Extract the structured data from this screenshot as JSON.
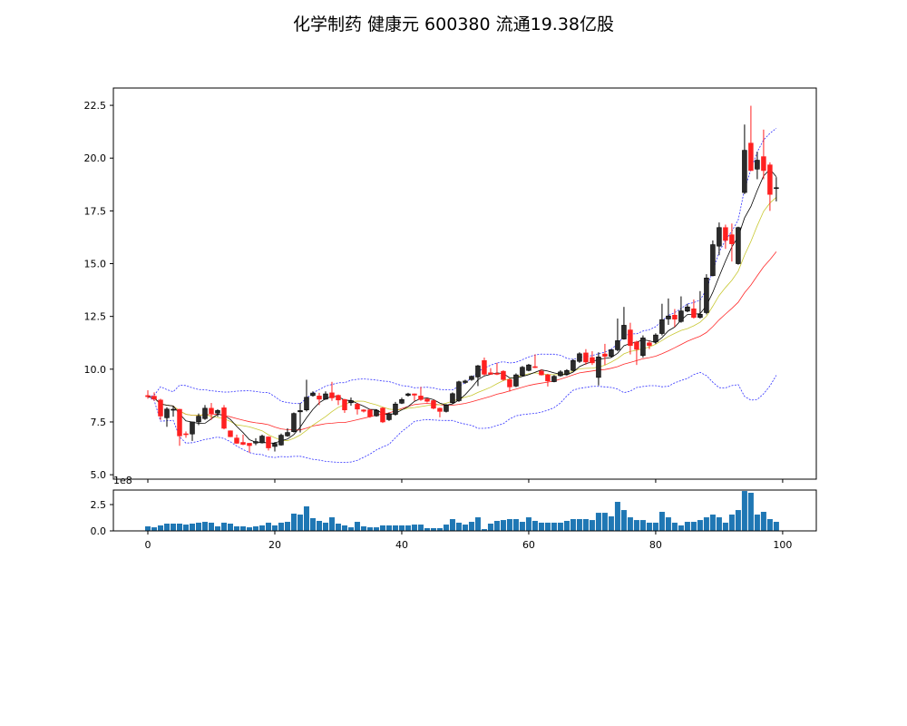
{
  "chart_data": {
    "type": "candlestick",
    "title": "化学制药 健康元 600380 流通19.38亿股",
    "colors": {
      "up": "#2b2b2b",
      "down": "#ff2020",
      "ma5": "#000000",
      "ma10": "#c8c832",
      "ma20": "#ff2a2a",
      "band": "#3030ff",
      "volume": "#1f77b4"
    },
    "price_axis": {
      "ylim": [
        4.79,
        23.32
      ],
      "ticks": [
        5.0,
        7.5,
        10.0,
        12.5,
        15.0,
        17.5,
        20.0,
        22.5
      ],
      "tick_labels": [
        "5.0",
        "7.5",
        "10.0",
        "12.5",
        "15.0",
        "17.5",
        "20.0",
        "22.5"
      ]
    },
    "x_axis": {
      "xlim": [
        -5.43,
        105.3
      ],
      "ticks": [
        0,
        20,
        40,
        60,
        80,
        100
      ],
      "tick_labels": [
        "0",
        "20",
        "40",
        "60",
        "80",
        "100"
      ]
    },
    "volume_axis": {
      "ylim": [
        0,
        3.88
      ],
      "ticks": [
        0,
        2.5
      ],
      "tick_labels": [
        "0.0",
        "2.5"
      ],
      "offset_label": "1e8"
    },
    "ohlc_fields": [
      "open",
      "high",
      "low",
      "close"
    ],
    "ohlc": [
      [
        8.75,
        9.0,
        8.6,
        8.7
      ],
      [
        8.72,
        8.9,
        8.5,
        8.58
      ],
      [
        8.54,
        8.6,
        7.6,
        7.78
      ],
      [
        7.7,
        8.2,
        7.27,
        8.11
      ],
      [
        8.08,
        8.25,
        7.75,
        8.1
      ],
      [
        8.1,
        8.12,
        6.37,
        6.84
      ],
      [
        6.94,
        7.05,
        6.75,
        6.93
      ],
      [
        6.93,
        7.5,
        6.6,
        7.5
      ],
      [
        7.5,
        7.9,
        7.35,
        7.77
      ],
      [
        7.66,
        8.3,
        7.6,
        8.15
      ],
      [
        8.15,
        8.4,
        7.6,
        7.9
      ],
      [
        7.92,
        8.1,
        7.75,
        8.04
      ],
      [
        8.17,
        8.3,
        7.15,
        7.2
      ],
      [
        7.08,
        7.1,
        6.78,
        6.8
      ],
      [
        6.74,
        6.9,
        6.47,
        6.49
      ],
      [
        6.53,
        6.9,
        6.4,
        6.44
      ],
      [
        6.49,
        6.5,
        6.05,
        6.38
      ],
      [
        6.5,
        6.73,
        6.4,
        6.57
      ],
      [
        6.51,
        6.9,
        6.48,
        6.83
      ],
      [
        6.79,
        6.82,
        6.15,
        6.27
      ],
      [
        6.34,
        6.55,
        6.1,
        6.48
      ],
      [
        6.41,
        6.95,
        6.38,
        6.87
      ],
      [
        6.84,
        7.2,
        6.8,
        7.0
      ],
      [
        7.04,
        7.95,
        7.0,
        7.9
      ],
      [
        7.98,
        8.4,
        7.0,
        8.04
      ],
      [
        8.07,
        9.5,
        8.0,
        8.67
      ],
      [
        8.75,
        8.95,
        8.7,
        8.87
      ],
      [
        8.73,
        8.88,
        8.3,
        8.58
      ],
      [
        8.58,
        8.95,
        8.55,
        8.83
      ],
      [
        8.88,
        9.4,
        8.5,
        8.64
      ],
      [
        8.76,
        8.8,
        8.3,
        8.54
      ],
      [
        8.56,
        8.6,
        7.93,
        8.07
      ],
      [
        8.41,
        8.66,
        8.27,
        8.51
      ],
      [
        8.34,
        8.4,
        7.85,
        8.11
      ],
      [
        8.07,
        8.1,
        7.95,
        8.01
      ],
      [
        8.07,
        8.1,
        7.7,
        7.76
      ],
      [
        7.79,
        8.1,
        7.75,
        8.05
      ],
      [
        8.16,
        8.2,
        7.45,
        7.5
      ],
      [
        7.61,
        7.95,
        7.55,
        7.89
      ],
      [
        7.86,
        8.45,
        7.8,
        8.35
      ],
      [
        8.39,
        8.65,
        8.35,
        8.56
      ],
      [
        8.76,
        8.88,
        8.7,
        8.83
      ],
      [
        8.83,
        8.85,
        8.5,
        8.77
      ],
      [
        8.73,
        9.16,
        8.5,
        8.56
      ],
      [
        8.59,
        8.62,
        8.42,
        8.48
      ],
      [
        8.51,
        8.55,
        8.1,
        8.15
      ],
      [
        8.15,
        8.18,
        7.72,
        8.0
      ],
      [
        8.0,
        8.35,
        7.95,
        8.3
      ],
      [
        8.41,
        8.9,
        8.35,
        8.84
      ],
      [
        8.51,
        9.45,
        8.45,
        9.4
      ],
      [
        9.37,
        9.5,
        9.3,
        9.44
      ],
      [
        9.51,
        9.7,
        9.45,
        9.66
      ],
      [
        9.63,
        10.2,
        9.2,
        10.16
      ],
      [
        10.41,
        10.55,
        9.7,
        9.76
      ],
      [
        9.83,
        10.05,
        9.73,
        9.76
      ],
      [
        9.8,
        10.3,
        9.72,
        9.78
      ],
      [
        9.9,
        9.95,
        9.45,
        9.51
      ],
      [
        9.51,
        9.55,
        8.94,
        9.16
      ],
      [
        9.2,
        9.8,
        9.15,
        9.73
      ],
      [
        9.7,
        10.15,
        9.65,
        10.09
      ],
      [
        9.94,
        10.25,
        9.9,
        10.2
      ],
      [
        10.12,
        10.7,
        10.05,
        10.09
      ],
      [
        9.91,
        10.0,
        9.7,
        9.73
      ],
      [
        9.73,
        9.78,
        9.18,
        9.44
      ],
      [
        9.41,
        9.72,
        9.38,
        9.66
      ],
      [
        9.69,
        9.95,
        9.65,
        9.87
      ],
      [
        9.76,
        10.0,
        9.7,
        9.94
      ],
      [
        9.94,
        10.48,
        9.9,
        10.41
      ],
      [
        10.37,
        10.8,
        10.3,
        10.73
      ],
      [
        10.77,
        10.95,
        10.2,
        10.34
      ],
      [
        10.55,
        10.85,
        10.2,
        10.3
      ],
      [
        9.61,
        10.8,
        9.23,
        10.58
      ],
      [
        10.72,
        11.2,
        10.2,
        10.61
      ],
      [
        10.61,
        10.95,
        10.55,
        10.92
      ],
      [
        10.92,
        12.4,
        10.85,
        11.35
      ],
      [
        11.43,
        12.95,
        11.4,
        12.08
      ],
      [
        11.86,
        12.2,
        10.7,
        11.12
      ],
      [
        11.29,
        11.35,
        10.2,
        10.94
      ],
      [
        10.65,
        11.6,
        10.55,
        11.48
      ],
      [
        11.25,
        11.35,
        10.95,
        11.12
      ],
      [
        11.29,
        11.7,
        11.2,
        11.62
      ],
      [
        11.69,
        13.1,
        11.6,
        12.35
      ],
      [
        12.38,
        13.35,
        12.1,
        12.52
      ],
      [
        12.56,
        12.85,
        12.0,
        12.37
      ],
      [
        12.26,
        13.45,
        12.2,
        12.76
      ],
      [
        12.75,
        13.1,
        12.7,
        12.95
      ],
      [
        12.86,
        13.3,
        12.4,
        12.45
      ],
      [
        12.45,
        13.7,
        12.4,
        12.6
      ],
      [
        12.68,
        14.5,
        12.6,
        14.32
      ],
      [
        14.43,
        16.1,
        14.4,
        15.9
      ],
      [
        15.83,
        16.95,
        15.4,
        16.71
      ],
      [
        16.71,
        16.85,
        15.7,
        16.1
      ],
      [
        16.37,
        16.9,
        15.1,
        15.94
      ],
      [
        15.0,
        16.75,
        14.95,
        16.71
      ],
      [
        18.37,
        21.59,
        18.3,
        20.37
      ],
      [
        20.71,
        22.48,
        19.4,
        19.41
      ],
      [
        19.48,
        20.3,
        19.0,
        19.9
      ],
      [
        20.07,
        21.35,
        19.0,
        19.41
      ],
      [
        19.68,
        19.8,
        17.5,
        18.28
      ],
      [
        18.6,
        19.1,
        17.95,
        18.6
      ]
    ],
    "volume_1e8": [
      0.43,
      0.34,
      0.52,
      0.69,
      0.69,
      0.69,
      0.6,
      0.69,
      0.78,
      0.86,
      0.78,
      0.43,
      0.78,
      0.69,
      0.43,
      0.43,
      0.34,
      0.43,
      0.52,
      0.78,
      0.52,
      0.78,
      0.86,
      1.64,
      1.55,
      2.33,
      1.21,
      0.95,
      0.78,
      1.29,
      0.69,
      0.52,
      0.34,
      0.86,
      0.43,
      0.34,
      0.34,
      0.52,
      0.52,
      0.52,
      0.52,
      0.52,
      0.6,
      0.6,
      0.26,
      0.26,
      0.26,
      0.6,
      1.12,
      0.78,
      0.6,
      0.86,
      1.29,
      0.17,
      0.69,
      0.95,
      1.03,
      1.12,
      1.12,
      0.86,
      1.29,
      0.95,
      0.78,
      0.78,
      0.78,
      0.78,
      0.95,
      1.12,
      1.12,
      1.12,
      1.03,
      1.72,
      1.72,
      1.38,
      2.76,
      1.98,
      1.29,
      1.03,
      1.03,
      0.78,
      0.78,
      1.81,
      1.29,
      0.78,
      0.52,
      0.86,
      0.86,
      1.03,
      1.29,
      1.55,
      1.29,
      0.78,
      1.55,
      1.98,
      3.79,
      3.62,
      1.55,
      1.81,
      1.12,
      0.86
    ],
    "indicators": {
      "ma_periods": [
        5,
        10,
        20
      ],
      "bollinger_period": 20,
      "bollinger_k": 2
    },
    "grid": false
  }
}
